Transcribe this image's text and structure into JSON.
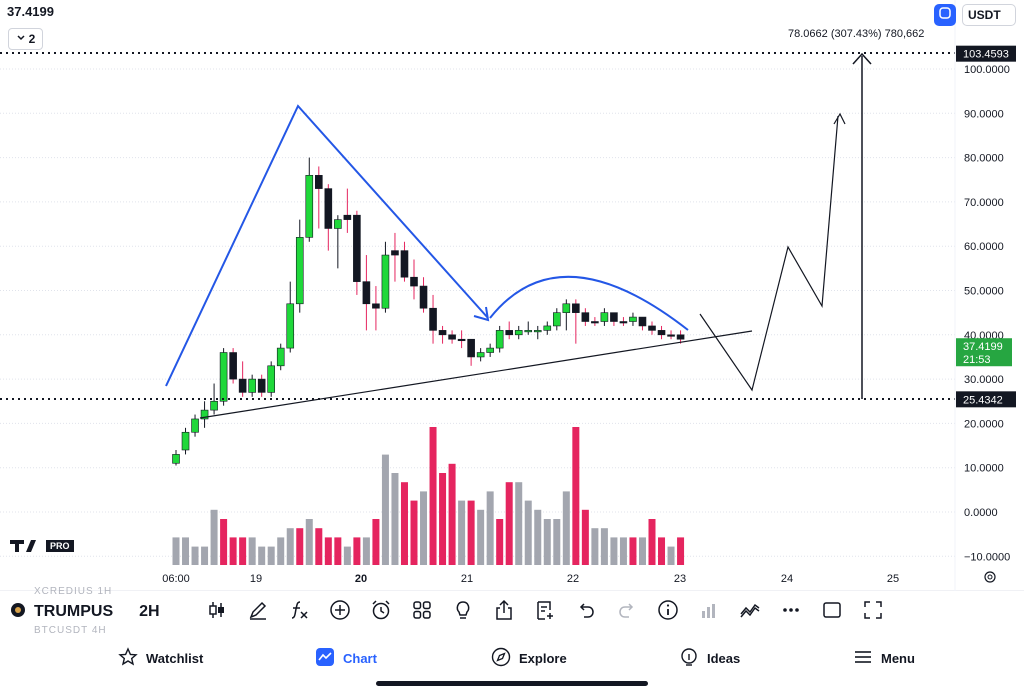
{
  "header": {
    "last_price": "37.4199",
    "interval": "2",
    "currency": "USDT"
  },
  "measure": {
    "label": "78.0662 (307.43%) 780,662",
    "top_label": "103.4593",
    "bottom_label": "25.4342",
    "top_value": 103.4593,
    "bottom_value": 25.4342
  },
  "price_axis": {
    "ticks": [
      "100.0000",
      "90.0000",
      "80.0000",
      "70.0000",
      "60.0000",
      "50.0000",
      "40.0000",
      "30.0000",
      "20.0000",
      "10.0000",
      "0.0000",
      "−10.0000"
    ],
    "current_price": "37.4199",
    "countdown": "21:53"
  },
  "time_axis": {
    "labels": [
      "06:00",
      "19",
      "20",
      "21",
      "22",
      "23",
      "24",
      "25"
    ]
  },
  "chart_data": {
    "type": "candlestick",
    "price_ylim": [
      -10,
      105
    ],
    "candles": [
      [
        13,
        14,
        10.5,
        11,
        0
      ],
      [
        14,
        19,
        13,
        18,
        0
      ],
      [
        18,
        22,
        17,
        21,
        0
      ],
      [
        21,
        25,
        19,
        23,
        0
      ],
      [
        23,
        29,
        22,
        25,
        0
      ],
      [
        25,
        37,
        24,
        36,
        0
      ],
      [
        36,
        37,
        29,
        30,
        1
      ],
      [
        30,
        34,
        26,
        27,
        1
      ],
      [
        27,
        31,
        26,
        30,
        0
      ],
      [
        30,
        31,
        26,
        27,
        1
      ],
      [
        27,
        34,
        26,
        33,
        0
      ],
      [
        33,
        38,
        32,
        37,
        0
      ],
      [
        37,
        52,
        36,
        47,
        0
      ],
      [
        47,
        66,
        45,
        62,
        0
      ],
      [
        62,
        80,
        61,
        76,
        0
      ],
      [
        76,
        78,
        64,
        73,
        1
      ],
      [
        73,
        74,
        59,
        64,
        1
      ],
      [
        64,
        67,
        55,
        66,
        0
      ],
      [
        66,
        73,
        63,
        67,
        1
      ],
      [
        67,
        68,
        49,
        52,
        1
      ],
      [
        52,
        58,
        41,
        47,
        1
      ],
      [
        47,
        51,
        41,
        46,
        1
      ],
      [
        46,
        61,
        45,
        58,
        0
      ],
      [
        58,
        63,
        52,
        59,
        1
      ],
      [
        59,
        61,
        52,
        53,
        1
      ],
      [
        53,
        57,
        48,
        51,
        1
      ],
      [
        51,
        53,
        45,
        46,
        1
      ],
      [
        46,
        49,
        38,
        41,
        1
      ],
      [
        41,
        42,
        38,
        40,
        1
      ],
      [
        40,
        41,
        38,
        39,
        1
      ],
      [
        39,
        41,
        37,
        39,
        1
      ],
      [
        39,
        39,
        33,
        35,
        1
      ],
      [
        35,
        37,
        34,
        36,
        0
      ],
      [
        36,
        38,
        35,
        37,
        0
      ],
      [
        37,
        42,
        36,
        41,
        0
      ],
      [
        41,
        43,
        39,
        40,
        1
      ],
      [
        40,
        42,
        39,
        41,
        0
      ],
      [
        41,
        43,
        40,
        41,
        0
      ],
      [
        41,
        42,
        39,
        41,
        0
      ],
      [
        41,
        43,
        40,
        42,
        0
      ],
      [
        42,
        46,
        41,
        45,
        0
      ],
      [
        45,
        48,
        41,
        47,
        0
      ],
      [
        47,
        48,
        38,
        45,
        1
      ],
      [
        45,
        46,
        42,
        43,
        1
      ],
      [
        43,
        44,
        42,
        43,
        1
      ],
      [
        43,
        46,
        42,
        45,
        0
      ],
      [
        45,
        45,
        42,
        43,
        1
      ],
      [
        43,
        44,
        42,
        43,
        1
      ],
      [
        43,
        45,
        42,
        44,
        0
      ],
      [
        44,
        44,
        41,
        42,
        1
      ],
      [
        42,
        43,
        40,
        41,
        1
      ],
      [
        41,
        42,
        39,
        40,
        1
      ],
      [
        40,
        41,
        39,
        40,
        1
      ],
      [
        40,
        41,
        38,
        39,
        1
      ]
    ],
    "volume": [
      3,
      3,
      2,
      2,
      6,
      5,
      3,
      3,
      3,
      2,
      2,
      3,
      4,
      4,
      5,
      4,
      3,
      3,
      2,
      3,
      3,
      5,
      12,
      10,
      9,
      7,
      8,
      15,
      10,
      11,
      7,
      7,
      6,
      8,
      5,
      9,
      9,
      7,
      6,
      5,
      5,
      8,
      15,
      6,
      4,
      4,
      3,
      3,
      3,
      3,
      5,
      3,
      2,
      3
    ],
    "volume_colors": [
      0,
      0,
      0,
      0,
      0,
      1,
      1,
      1,
      0,
      0,
      0,
      0,
      0,
      1,
      0,
      1,
      1,
      1,
      0,
      1,
      0,
      1,
      0,
      0,
      1,
      1,
      0,
      1,
      1,
      1,
      0,
      1,
      0,
      0,
      1,
      1,
      0,
      0,
      0,
      0,
      0,
      0,
      1,
      1,
      0,
      0,
      0,
      0,
      1,
      0,
      1,
      1,
      0,
      1
    ]
  },
  "toolbar": {
    "symbol": "TRUMPUS",
    "timeframe": "2H",
    "ghost_1": "XCREDIUS  1H",
    "ghost_2": "BTCUSDT  4H"
  },
  "nav": {
    "watchlist": "Watchlist",
    "chart": "Chart",
    "explore": "Explore",
    "ideas": "Ideas",
    "menu": "Menu"
  },
  "colors": {
    "up": "#1fd83a",
    "down": "#131722",
    "vol_up": "#a3a6af",
    "vol_down": "#e5255f",
    "drawing": "#2457e6",
    "accent": "#2962ff",
    "price_tag": "#26a641"
  },
  "logo_text": "PRO"
}
